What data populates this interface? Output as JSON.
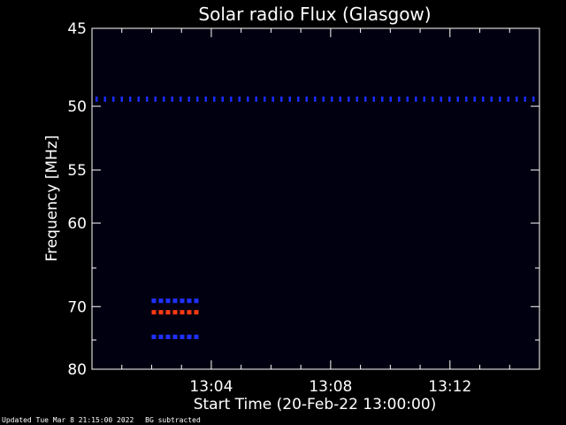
{
  "chart_data": {
    "type": "heatmap",
    "title": "Solar radio Flux (Glasgow)",
    "xlabel": "Start Time (20-Feb-22 13:00:00)",
    "ylabel": "Frequency [MHz]",
    "x_ticks": [
      "13:04",
      "13:08",
      "13:12"
    ],
    "x_tick_values_min": [
      4,
      8,
      12
    ],
    "xlim_min": [
      0,
      15
    ],
    "y_ticks": [
      45,
      50,
      55,
      60,
      70,
      80
    ],
    "ylim": [
      45,
      80
    ],
    "y_scale": "reciprocal",
    "background_color": "#000010",
    "features": [
      {
        "label": "50 MHz line",
        "freq": 49.5,
        "t_start_min": 0,
        "t_end_min": 15,
        "color": "#1a2aff",
        "kind": "dotted-line"
      },
      {
        "label": "burst 69 MHz",
        "freq": 69.2,
        "t_start_min": 2.0,
        "t_end_min": 3.5,
        "color": "#2030ff",
        "kind": "dashes"
      },
      {
        "label": "burst 70.8 MHz",
        "freq": 70.8,
        "t_start_min": 2.0,
        "t_end_min": 3.5,
        "color": "#ff3a10",
        "kind": "dashes"
      },
      {
        "label": "burst 74.5 MHz",
        "freq": 74.5,
        "t_start_min": 2.0,
        "t_end_min": 3.5,
        "color": "#2030ff",
        "kind": "dashes"
      }
    ]
  },
  "footer": {
    "updated": "Updated Tue Mar  8 21:15:00 2022",
    "note": "BG subtracted"
  }
}
